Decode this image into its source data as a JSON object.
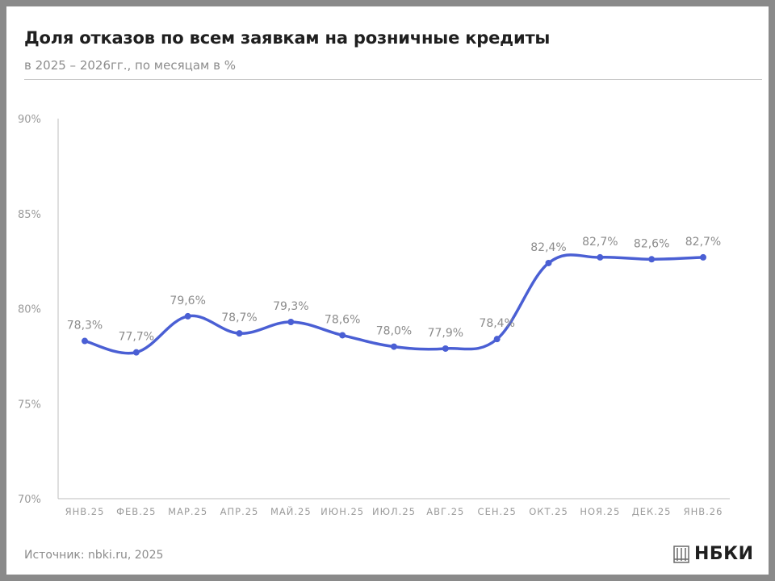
{
  "header": {
    "title": "Доля отказов по всем заявкам на розничные кредиты",
    "subtitle": "в 2025 – 2026гг., по месяцам в %"
  },
  "footer": {
    "source": "Источник: nbki.ru, 2025",
    "logo_text": "НБКИ"
  },
  "colors": {
    "line": "#4a5fd4",
    "axis_text": "#9a9a9a",
    "label_text": "#8c8c8c"
  },
  "chart_data": {
    "type": "line",
    "title": "Доля отказов по всем заявкам на розничные кредиты",
    "subtitle": "в 2025 – 2026гг., по месяцам в %",
    "xlabel": "",
    "ylabel": "",
    "categories": [
      "ЯНВ.25",
      "ФЕВ.25",
      "МАР.25",
      "АПР.25",
      "МАЙ.25",
      "ИЮН.25",
      "ИЮЛ.25",
      "АВГ.25",
      "СЕН.25",
      "ОКТ.25",
      "НОЯ.25",
      "ДЕК.25",
      "ЯНВ.26"
    ],
    "values": [
      78.3,
      77.7,
      79.6,
      78.7,
      79.3,
      78.6,
      78.0,
      77.9,
      78.4,
      82.4,
      82.7,
      82.6,
      82.7
    ],
    "data_labels": [
      "78,3%",
      "77,7%",
      "79,6%",
      "78,7%",
      "79,3%",
      "78,6%",
      "78,0%",
      "77,9%",
      "78,4%",
      "82,4%",
      "82,7%",
      "82,6%",
      "82,7%"
    ],
    "ylim": [
      70,
      90
    ],
    "yticks": [
      70,
      75,
      80,
      85,
      90
    ],
    "ytick_labels": [
      "70%",
      "75%",
      "80%",
      "85%",
      "90%"
    ],
    "grid": false,
    "legend": "none"
  }
}
